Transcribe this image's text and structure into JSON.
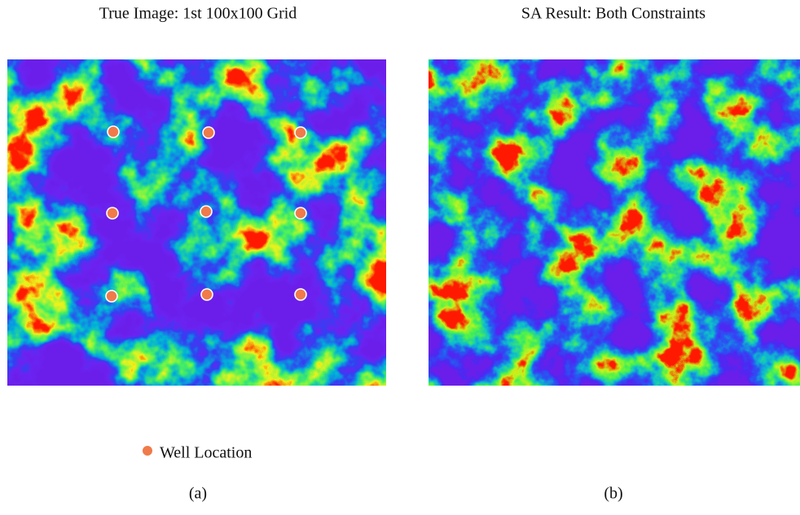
{
  "panels": [
    {
      "title": "True Image: 1st 100x100 Grid",
      "caption": "(a)"
    },
    {
      "title": "SA Result: Both Constraints",
      "caption": "(b)"
    }
  ],
  "legend": {
    "label": "Well Location"
  }
}
